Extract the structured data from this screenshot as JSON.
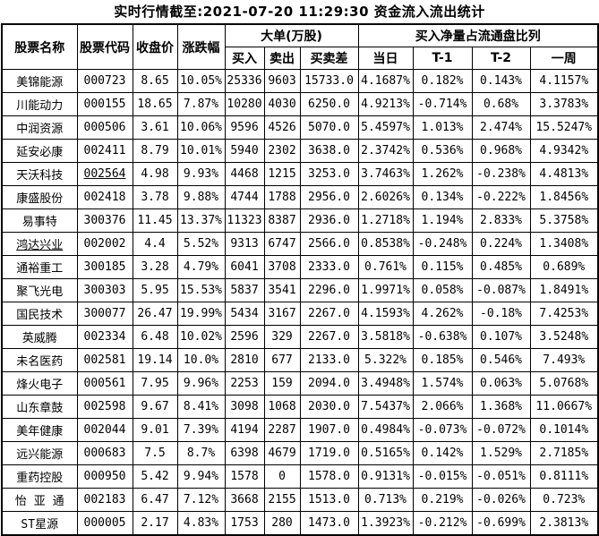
{
  "title": "实时行情截至:2021-07-20 11:29:30 资金流入流出统计",
  "colors": {
    "link_blue": "#1c5b94",
    "border": "#000000",
    "background": "#ffffff",
    "text": "#000000"
  },
  "table": {
    "header": {
      "stock_name": "股票名称",
      "stock_code": "股票代码",
      "close_price": "收盘价",
      "change_pct": "涨跌幅",
      "large_orders_group": "大单(万股)",
      "buy": "买入",
      "sell": "卖出",
      "buy_sell_diff": "买卖差",
      "net_buy_group": "买入净量占流通盘比列",
      "today": "当日",
      "t_minus_1": "T-1",
      "t_minus_2": "T-2",
      "week": "一周"
    },
    "rows": [
      {
        "cells": [
          "美锦能源",
          "000723",
          "8.65",
          "10.05%",
          "25336",
          "9603",
          "15733.0",
          "4.1687%",
          "0.182%",
          "0.143%",
          "4.1157%"
        ],
        "underline": []
      },
      {
        "cells": [
          "川能动力",
          "000155",
          "18.65",
          "7.87%",
          "10280",
          "4030",
          "6250.0",
          "4.9213%",
          "-0.714%",
          "0.68%",
          "3.3783%"
        ],
        "underline": []
      },
      {
        "cells": [
          "中润资源",
          "000506",
          "3.61",
          "10.06%",
          "9596",
          "4526",
          "5070.0",
          "5.4597%",
          "1.013%",
          "2.474%",
          "15.5247%"
        ],
        "underline": []
      },
      {
        "cells": [
          "延安必康",
          "002411",
          "8.79",
          "10.01%",
          "5940",
          "2302",
          "3638.0",
          "2.3742%",
          "0.536%",
          "0.968%",
          "4.9342%"
        ],
        "underline": []
      },
      {
        "cells": [
          "天沃科技",
          "002564",
          "4.98",
          "9.93%",
          "4468",
          "1215",
          "3253.0",
          "3.7463%",
          "1.262%",
          "-0.238%",
          "4.4813%"
        ],
        "underline": [
          1
        ]
      },
      {
        "cells": [
          "康盛股份",
          "002418",
          "3.78",
          "9.88%",
          "4744",
          "1788",
          "2956.0",
          "2.6026%",
          "0.134%",
          "-0.222%",
          "1.8456%"
        ],
        "underline": []
      },
      {
        "cells": [
          "易事特",
          "300376",
          "11.45",
          "13.37%",
          "11323",
          "8387",
          "2936.0",
          "1.2718%",
          "1.194%",
          "2.833%",
          "5.3758%"
        ],
        "underline": []
      },
      {
        "cells": [
          "鸿达兴业",
          "002002",
          "4.4",
          "5.52%",
          "9313",
          "6747",
          "2566.0",
          "0.8538%",
          "-0.248%",
          "0.224%",
          "1.3408%"
        ],
        "underline": [
          0
        ]
      },
      {
        "cells": [
          "通裕重工",
          "300185",
          "3.28",
          "4.79%",
          "6041",
          "3708",
          "2333.0",
          "0.761%",
          "0.115%",
          "0.485%",
          "0.689%"
        ],
        "underline": []
      },
      {
        "cells": [
          "聚飞光电",
          "300303",
          "5.95",
          "15.53%",
          "5837",
          "3541",
          "2296.0",
          "1.9971%",
          "0.058%",
          "-0.087%",
          "1.8491%"
        ],
        "underline": []
      },
      {
        "cells": [
          "国民技术",
          "300077",
          "26.47",
          "19.99%",
          "5434",
          "3167",
          "2267.0",
          "4.1593%",
          "4.262%",
          "-0.18%",
          "7.4253%"
        ],
        "underline": []
      },
      {
        "cells": [
          "英威腾",
          "002334",
          "6.48",
          "10.02%",
          "2596",
          "329",
          "2267.0",
          "3.5818%",
          "-0.638%",
          "0.107%",
          "3.5248%"
        ],
        "underline": []
      },
      {
        "cells": [
          "未名医药",
          "002581",
          "19.14",
          "10.0%",
          "2810",
          "677",
          "2133.0",
          "5.322%",
          "0.185%",
          "0.546%",
          "7.493%"
        ],
        "underline": []
      },
      {
        "cells": [
          "烽火电子",
          "000561",
          "7.95",
          "9.96%",
          "2253",
          "159",
          "2094.0",
          "3.4948%",
          "1.574%",
          "0.063%",
          "5.0768%"
        ],
        "underline": []
      },
      {
        "cells": [
          "山东章鼓",
          "002598",
          "9.67",
          "8.41%",
          "3098",
          "1068",
          "2030.0",
          "7.5437%",
          "2.066%",
          "1.368%",
          "11.0667%"
        ],
        "underline": []
      },
      {
        "cells": [
          "美年健康",
          "002044",
          "9.01",
          "7.39%",
          "4194",
          "2287",
          "1907.0",
          "0.4984%",
          "-0.073%",
          "-0.072%",
          "0.1014%"
        ],
        "underline": []
      },
      {
        "cells": [
          "远兴能源",
          "000683",
          "7.5",
          "8.7%",
          "6398",
          "4679",
          "1719.0",
          "0.5165%",
          "0.142%",
          "1.529%",
          "2.7185%"
        ],
        "underline": []
      },
      {
        "cells": [
          "重药控股",
          "000950",
          "5.42",
          "9.94%",
          "1578",
          "0",
          "1578.0",
          "0.9131%",
          "-0.015%",
          "-0.051%",
          "0.8111%"
        ],
        "underline": []
      },
      {
        "cells": [
          "怡 亚 通",
          "002183",
          "6.47",
          "7.12%",
          "3668",
          "2155",
          "1513.0",
          "0.713%",
          "0.219%",
          "-0.026%",
          "0.723%"
        ],
        "underline": []
      },
      {
        "cells": [
          "ST星源",
          "000005",
          "2.17",
          "4.83%",
          "1753",
          "280",
          "1473.0",
          "1.3923%",
          "-0.212%",
          "-0.699%",
          "2.3813%"
        ],
        "underline": []
      }
    ]
  }
}
